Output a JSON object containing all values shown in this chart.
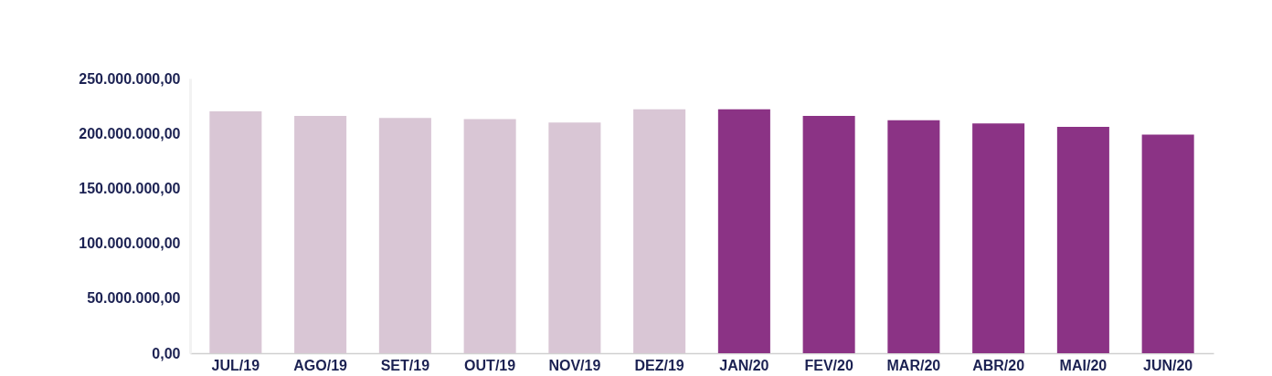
{
  "chart_data": {
    "type": "bar",
    "categories": [
      "JUL/19",
      "AGO/19",
      "SET/19",
      "OUT/19",
      "NOV/19",
      "DEZ/19",
      "JAN/20",
      "FEV/20",
      "MAR/20",
      "ABR/20",
      "MAI/20",
      "JUN/20"
    ],
    "values": [
      220000000,
      216000000,
      214000000,
      213000000,
      210000000,
      222000000,
      222000000,
      216000000,
      212000000,
      209000000,
      206000000,
      199000000
    ],
    "colors": [
      "#d9c6d5",
      "#d9c6d5",
      "#d9c6d5",
      "#d9c6d5",
      "#d9c6d5",
      "#d9c6d5",
      "#8b3385",
      "#8b3385",
      "#8b3385",
      "#8b3385",
      "#8b3385",
      "#8b3385"
    ],
    "ylim": [
      0,
      250000000
    ],
    "yticks": [
      {
        "value": 0,
        "label": "0,00"
      },
      {
        "value": 50000000,
        "label": "50.000.000,00"
      },
      {
        "value": 100000000,
        "label": "100.000.000,00"
      },
      {
        "value": 150000000,
        "label": "150.000.000,00"
      },
      {
        "value": 200000000,
        "label": "200.000.000,00"
      },
      {
        "value": 250000000,
        "label": "250.000.000,00"
      }
    ]
  }
}
